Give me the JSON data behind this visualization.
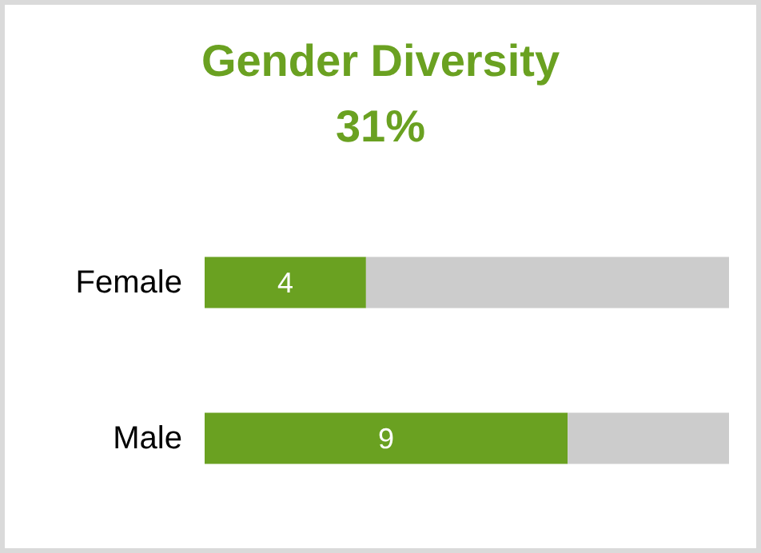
{
  "chart_data": {
    "type": "bar",
    "orientation": "horizontal",
    "stacked": true,
    "title": "Gender Diversity",
    "subtitle": "31%",
    "categories": [
      "Female",
      "Male"
    ],
    "xlim": [
      0,
      13
    ],
    "tick_labels": "y",
    "grid": false,
    "series": [
      {
        "color": "#6aa121",
        "values": [
          4,
          9
        ],
        "value_labels": [
          "4",
          "9"
        ]
      },
      {
        "color": "#cccccc",
        "values": [
          9,
          4
        ]
      }
    ]
  }
}
